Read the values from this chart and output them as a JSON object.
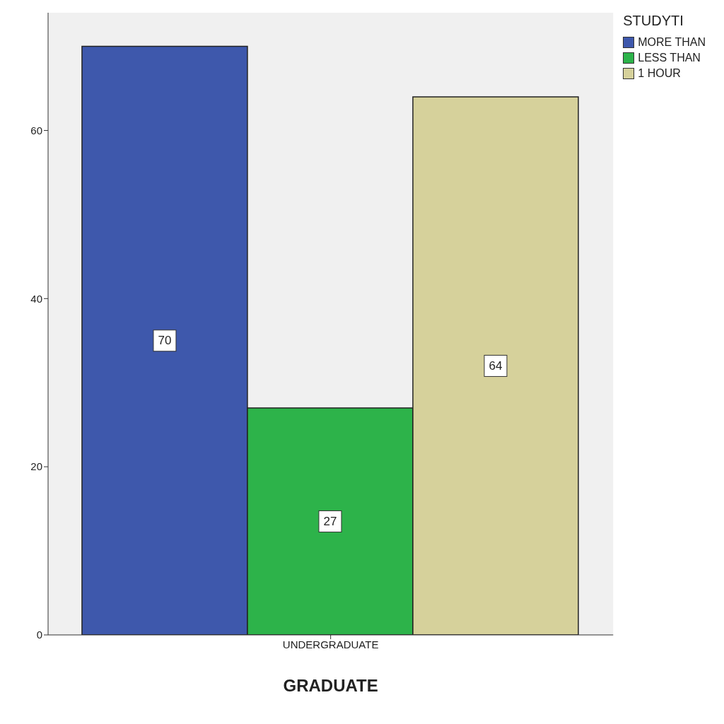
{
  "chart_data": {
    "type": "bar",
    "xlabel": "GRADUATE",
    "legend_title": "STUDYTI",
    "categories": [
      "UNDERGRADUATE"
    ],
    "series": [
      {
        "name": "MORE THAN",
        "color": "#3e58ac",
        "values": [
          70
        ]
      },
      {
        "name": "LESS THAN",
        "color": "#2db34a",
        "values": [
          27
        ]
      },
      {
        "name": "1 HOUR",
        "color": "#d6d19b",
        "values": [
          64
        ]
      }
    ],
    "ylim": [
      0,
      74
    ],
    "yticks": [
      0,
      20,
      40,
      60
    ],
    "data_labels": true,
    "legend": "top right",
    "grid": false
  }
}
